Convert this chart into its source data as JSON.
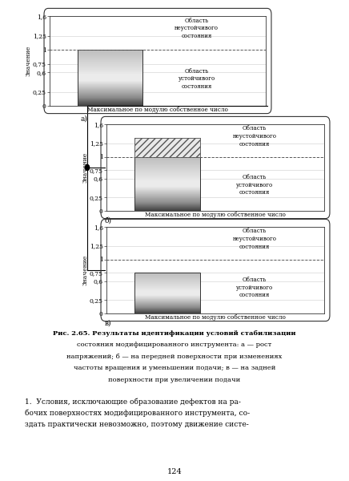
{
  "charts": [
    {
      "bar_value": 1.0,
      "ylim": [
        0,
        1.6
      ],
      "yticks": [
        0,
        0.25,
        0.6,
        0.75,
        1.0,
        1.25,
        1.6
      ],
      "ytick_labels": [
        "0",
        "0,25",
        "0,6",
        "0,75",
        "1",
        "1,25",
        "1,6"
      ]
    },
    {
      "bar_value": 1.35,
      "ylim": [
        0,
        1.6
      ],
      "yticks": [
        0,
        0.25,
        0.6,
        0.75,
        1.0,
        1.25,
        1.6
      ],
      "ytick_labels": [
        "0",
        "0,25",
        "0,6",
        "0,75",
        "1",
        "1,25",
        "1,6"
      ]
    },
    {
      "bar_value": 0.75,
      "ylim": [
        0,
        1.6
      ],
      "yticks": [
        0,
        0.25,
        0.6,
        0.75,
        1.0,
        1.25,
        1.6
      ],
      "ytick_labels": [
        "0",
        "0,25",
        "0,6",
        "0,75",
        "1",
        "1,25",
        "1,6"
      ]
    }
  ],
  "xlabel": "Максимальное по модулю собственное число",
  "ylabel": "Значение",
  "unstable_text": "Область\nнеустойчивого\nсостояния",
  "stable_text": "Область\nустойчивого\nсостояния",
  "label_a": "а)",
  "label_b": "б)",
  "label_v": "в)",
  "caption_bold": "Рис. 2.65.",
  "caption_rest": " Результаты идентификации условий стабилизации\nсостояния модифицированного инструмента: ",
  "caption_italic_a": "а",
  "caption_after_a": " — рост напряжений; ",
  "caption_italic_b": "б",
  "caption_after_b": " — на передней поверхности при изменениях\nчастоты вращения и уменьшении подачи; ",
  "caption_italic_v": "в",
  "caption_after_v": " — на задней\nповерхности при увеличении подачи",
  "caption_line1": "Рис. 2.65. Результаты идентификации условий стабилизации",
  "caption_line2": "состояния модифицированного инструмента: а — рост",
  "caption_line3": "напряжений; б — на передней поверхности при изменениях",
  "caption_line4": "частоты вращения и уменьшении подачи; в — на задней",
  "caption_line5": "поверхности при увеличении подачи",
  "footer_line1": "1.  Условия, исключающие образование дефектов на ра-",
  "footer_line2": "бочих поверхностях модифицированного инструмента, со-",
  "footer_line3": "здать практически невозможно, поэтому движение систе-",
  "page_number": "124",
  "bg_color": "#ffffff",
  "bar_color_dark": "#404040",
  "bar_color_light": "#d8d8d8",
  "hatch_pattern": "///",
  "hatch_color": "#888888"
}
